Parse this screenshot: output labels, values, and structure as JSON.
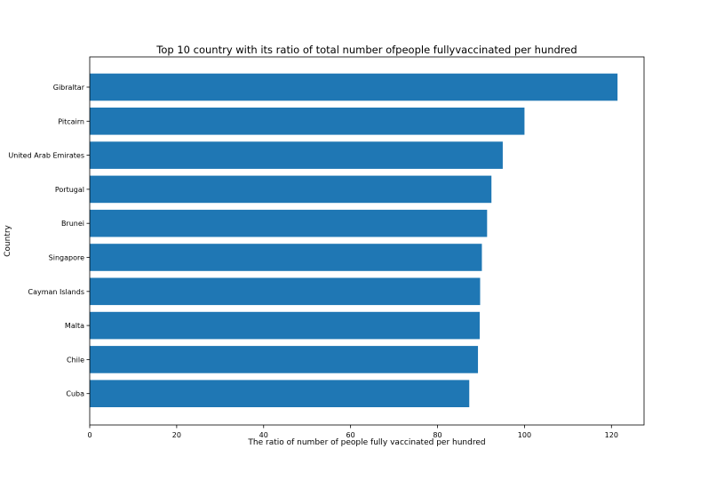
{
  "chart_data": {
    "type": "bar",
    "orientation": "horizontal",
    "title": "Top 10 country with its ratio of total number ofpeople fullyvaccinated per hundred",
    "xlabel": "The ratio of number of people fully vaccinated per hundred",
    "ylabel": "Country",
    "categories": [
      "Gibraltar",
      "Pitcairn",
      "United Arab Emirates",
      "Portugal",
      "Brunei",
      "Singapore",
      "Cayman Islands",
      "Malta",
      "Chile",
      "Cuba"
    ],
    "values": [
      121.4,
      100.0,
      95.0,
      92.4,
      91.4,
      90.2,
      89.8,
      89.7,
      89.3,
      87.3
    ],
    "xlim": [
      0,
      127.5
    ],
    "xticks": [
      0,
      20,
      40,
      60,
      80,
      100,
      120
    ],
    "grid": false,
    "bar_color": "#1f77b4"
  }
}
